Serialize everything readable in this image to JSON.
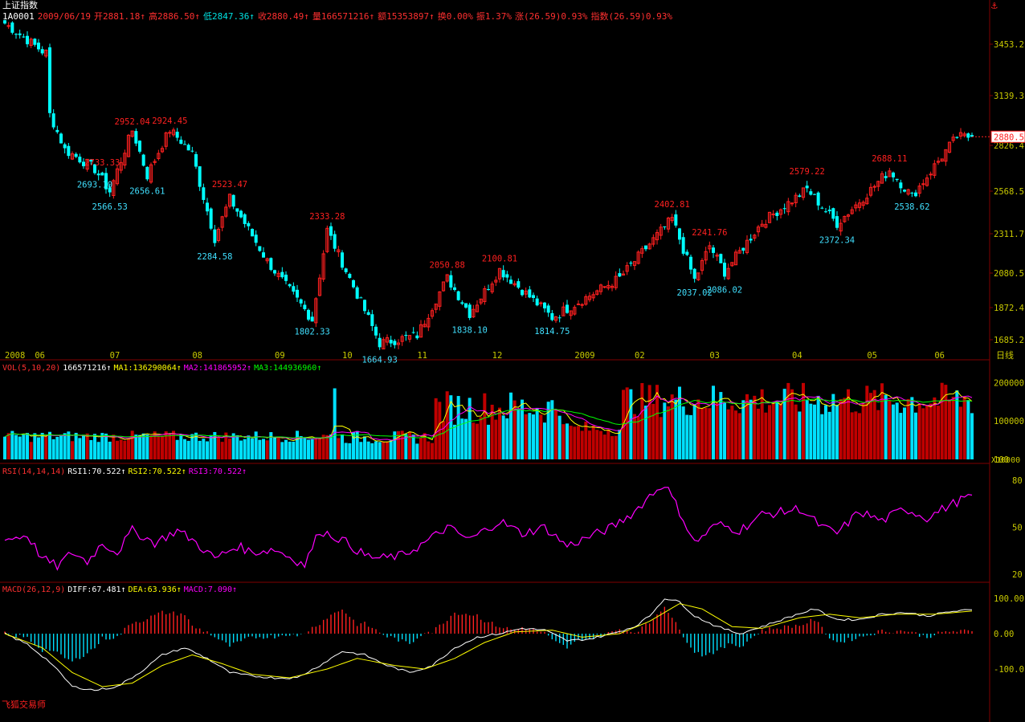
{
  "header": {
    "index_name": "上证指数",
    "code": "1A0001",
    "date": "2009/06/19",
    "fields": [
      {
        "text": "开2881.18↑",
        "color": "#ff3030"
      },
      {
        "text": "高2886.50↑",
        "color": "#ff3030"
      },
      {
        "text": "低2847.36↑",
        "color": "#00e0e0"
      },
      {
        "text": "收2880.49↑",
        "color": "#ff3030"
      },
      {
        "text": "量166571216↑",
        "color": "#ff3030"
      },
      {
        "text": "额15353897↑",
        "color": "#ff3030"
      },
      {
        "text": "换0.00%",
        "color": "#ff3030"
      },
      {
        "text": "振1.37%",
        "color": "#ff3030"
      },
      {
        "text": "涨(26.59)0.93%",
        "color": "#ff3030"
      },
      {
        "text": "指数(26.59)0.93%",
        "color": "#ff3030"
      }
    ]
  },
  "brand": "飞狐交易师",
  "anchor_icon": "anchor-icon",
  "colors": {
    "up": "#ff2020",
    "down": "#00ffff",
    "axis": "#c8c800",
    "grid": "#800000",
    "white": "#ffffff",
    "yellow": "#ffff00",
    "magenta": "#ff00ff",
    "green": "#00ff00"
  },
  "chart_data": [
    {
      "type": "candlestick",
      "name": "price",
      "y_ticks": [
        3453.2,
        3139.3,
        2826.4,
        2568.5,
        2311.7,
        2080.5,
        1872.4,
        1685.2
      ],
      "last_price_label": "2880.5",
      "period_label": "日线",
      "x_labels": [
        {
          "label": "2008",
          "idx": 0
        },
        {
          "label": "06",
          "idx": 8
        },
        {
          "label": "07",
          "idx": 28
        },
        {
          "label": "08",
          "idx": 50
        },
        {
          "label": "09",
          "idx": 72
        },
        {
          "label": "10",
          "idx": 90
        },
        {
          "label": "11",
          "idx": 110
        },
        {
          "label": "12",
          "idx": 130
        },
        {
          "label": "2009",
          "idx": 152
        },
        {
          "label": "02",
          "idx": 168
        },
        {
          "label": "03",
          "idx": 188
        },
        {
          "label": "04",
          "idx": 210
        },
        {
          "label": "05",
          "idx": 230
        },
        {
          "label": "06",
          "idx": 248
        }
      ],
      "anchors": [
        [
          0,
          3580
        ],
        [
          10,
          3410
        ],
        [
          11,
          3400
        ],
        [
          12,
          3020
        ],
        [
          16,
          2800
        ],
        [
          20,
          2750
        ],
        [
          24,
          2693
        ],
        [
          28,
          2566
        ],
        [
          34,
          2920
        ],
        [
          38,
          2656
        ],
        [
          44,
          2924
        ],
        [
          50,
          2780
        ],
        [
          56,
          2284
        ],
        [
          60,
          2523
        ],
        [
          70,
          2150
        ],
        [
          82,
          1802
        ],
        [
          86,
          2333
        ],
        [
          100,
          1664
        ],
        [
          110,
          1710
        ],
        [
          118,
          2050
        ],
        [
          124,
          1838
        ],
        [
          132,
          2100
        ],
        [
          146,
          1814
        ],
        [
          164,
          2050
        ],
        [
          178,
          2402
        ],
        [
          184,
          2037
        ],
        [
          188,
          2241
        ],
        [
          192,
          2086
        ],
        [
          202,
          2380
        ],
        [
          214,
          2579
        ],
        [
          222,
          2372
        ],
        [
          236,
          2688
        ],
        [
          242,
          2538
        ],
        [
          254,
          2880
        ],
        [
          258,
          2880
        ]
      ],
      "peak_labels": [
        {
          "idx": 34,
          "text": "2952.04"
        },
        {
          "idx": 44,
          "text": "2924.45"
        },
        {
          "idx": 26,
          "text": "2733.33"
        },
        {
          "idx": 60,
          "text": "2523.47"
        },
        {
          "idx": 86,
          "text": "2333.28"
        },
        {
          "idx": 118,
          "text": "2050.88"
        },
        {
          "idx": 132,
          "text": "2100.81"
        },
        {
          "idx": 178,
          "text": "2402.81"
        },
        {
          "idx": 188,
          "text": "2241.76"
        },
        {
          "idx": 214,
          "text": "2579.22"
        },
        {
          "idx": 236,
          "text": "2688.11"
        }
      ],
      "trough_labels": [
        {
          "idx": 24,
          "text": "2693.10"
        },
        {
          "idx": 28,
          "text": "2566.53"
        },
        {
          "idx": 38,
          "text": "2656.61"
        },
        {
          "idx": 56,
          "text": "2284.58"
        },
        {
          "idx": 82,
          "text": "1802.33"
        },
        {
          "idx": 100,
          "text": "1664.93"
        },
        {
          "idx": 124,
          "text": "1838.10"
        },
        {
          "idx": 146,
          "text": "1814.75"
        },
        {
          "idx": 184,
          "text": "2037.02"
        },
        {
          "idx": 192,
          "text": "2086.02"
        },
        {
          "idx": 222,
          "text": "2372.34"
        },
        {
          "idx": 242,
          "text": "2538.62"
        }
      ]
    },
    {
      "type": "bar",
      "name": "volume",
      "header": [
        {
          "text": "VOL(5,10,20)",
          "color": "#ff3030"
        },
        {
          "text": "166571216↑",
          "color": "#ffffff"
        },
        {
          "text": "MA1:136290064↑",
          "color": "#ffff00"
        },
        {
          "text": "MA2:141865952↑",
          "color": "#ff00ff"
        },
        {
          "text": "MA3:144936960↑",
          "color": "#00ff00"
        }
      ],
      "y_ticks": [
        200000,
        100000,
        100
      ],
      "unit_label": "X10000"
    },
    {
      "type": "line",
      "name": "rsi",
      "header": [
        {
          "text": "RSI(14,14,14)",
          "color": "#ff3030"
        },
        {
          "text": "RSI1:70.522↑",
          "color": "#ffffff"
        },
        {
          "text": "RSI2:70.522↑",
          "color": "#ffff00"
        },
        {
          "text": "RSI3:70.522↑",
          "color": "#ff00ff"
        }
      ],
      "y_ticks": [
        80,
        50,
        20
      ],
      "anchors": [
        [
          0,
          42
        ],
        [
          6,
          45
        ],
        [
          10,
          30
        ],
        [
          14,
          25
        ],
        [
          18,
          34
        ],
        [
          22,
          28
        ],
        [
          26,
          40
        ],
        [
          30,
          34
        ],
        [
          34,
          48
        ],
        [
          40,
          40
        ],
        [
          46,
          48
        ],
        [
          50,
          42
        ],
        [
          56,
          30
        ],
        [
          62,
          38
        ],
        [
          66,
          34
        ],
        [
          72,
          36
        ],
        [
          80,
          26
        ],
        [
          84,
          48
        ],
        [
          90,
          42
        ],
        [
          96,
          32
        ],
        [
          100,
          30
        ],
        [
          106,
          32
        ],
        [
          112,
          40
        ],
        [
          118,
          50
        ],
        [
          124,
          42
        ],
        [
          128,
          48
        ],
        [
          132,
          54
        ],
        [
          138,
          46
        ],
        [
          144,
          50
        ],
        [
          150,
          38
        ],
        [
          156,
          44
        ],
        [
          162,
          50
        ],
        [
          168,
          60
        ],
        [
          172,
          70
        ],
        [
          176,
          78
        ],
        [
          180,
          60
        ],
        [
          184,
          40
        ],
        [
          190,
          52
        ],
        [
          196,
          48
        ],
        [
          202,
          58
        ],
        [
          208,
          60
        ],
        [
          212,
          62
        ],
        [
          218,
          50
        ],
        [
          222,
          46
        ],
        [
          228,
          60
        ],
        [
          234,
          54
        ],
        [
          240,
          62
        ],
        [
          246,
          56
        ],
        [
          252,
          64
        ],
        [
          258,
          70.5
        ]
      ]
    },
    {
      "type": "bar",
      "name": "macd",
      "header": [
        {
          "text": "MACD(26,12,9)",
          "color": "#ff3030"
        },
        {
          "text": "DIFF:67.481↑",
          "color": "#ffffff"
        },
        {
          "text": "DEA:63.936↑",
          "color": "#ffff00"
        },
        {
          "text": "MACD:7.090↑",
          "color": "#ff00ff"
        }
      ],
      "y_ticks": [
        "100.00",
        "0.00",
        "-100.0"
      ],
      "diff_anchors": [
        [
          0,
          0
        ],
        [
          6,
          -30
        ],
        [
          12,
          -80
        ],
        [
          18,
          -150
        ],
        [
          24,
          -160
        ],
        [
          30,
          -150
        ],
        [
          36,
          -110
        ],
        [
          42,
          -60
        ],
        [
          48,
          -40
        ],
        [
          54,
          -70
        ],
        [
          60,
          -110
        ],
        [
          66,
          -120
        ],
        [
          72,
          -125
        ],
        [
          78,
          -125
        ],
        [
          84,
          -90
        ],
        [
          90,
          -50
        ],
        [
          96,
          -60
        ],
        [
          102,
          -90
        ],
        [
          108,
          -110
        ],
        [
          114,
          -90
        ],
        [
          120,
          -40
        ],
        [
          126,
          -10
        ],
        [
          132,
          0
        ],
        [
          138,
          15
        ],
        [
          144,
          10
        ],
        [
          150,
          -20
        ],
        [
          156,
          -15
        ],
        [
          162,
          0
        ],
        [
          168,
          20
        ],
        [
          172,
          50
        ],
        [
          176,
          100
        ],
        [
          180,
          90
        ],
        [
          184,
          50
        ],
        [
          190,
          20
        ],
        [
          196,
          0
        ],
        [
          202,
          20
        ],
        [
          210,
          50
        ],
        [
          216,
          70
        ],
        [
          222,
          40
        ],
        [
          228,
          40
        ],
        [
          234,
          55
        ],
        [
          240,
          60
        ],
        [
          246,
          50
        ],
        [
          252,
          62
        ],
        [
          258,
          67.5
        ]
      ],
      "dea_anchors": [
        [
          0,
          0
        ],
        [
          10,
          -40
        ],
        [
          18,
          -110
        ],
        [
          26,
          -150
        ],
        [
          34,
          -140
        ],
        [
          42,
          -90
        ],
        [
          50,
          -60
        ],
        [
          58,
          -85
        ],
        [
          66,
          -115
        ],
        [
          76,
          -125
        ],
        [
          86,
          -100
        ],
        [
          94,
          -70
        ],
        [
          104,
          -90
        ],
        [
          112,
          -100
        ],
        [
          120,
          -70
        ],
        [
          128,
          -25
        ],
        [
          136,
          5
        ],
        [
          146,
          10
        ],
        [
          154,
          -10
        ],
        [
          164,
          0
        ],
        [
          172,
          35
        ],
        [
          180,
          85
        ],
        [
          186,
          70
        ],
        [
          194,
          20
        ],
        [
          202,
          15
        ],
        [
          212,
          45
        ],
        [
          220,
          55
        ],
        [
          228,
          45
        ],
        [
          238,
          55
        ],
        [
          248,
          55
        ],
        [
          258,
          64
        ]
      ]
    }
  ]
}
